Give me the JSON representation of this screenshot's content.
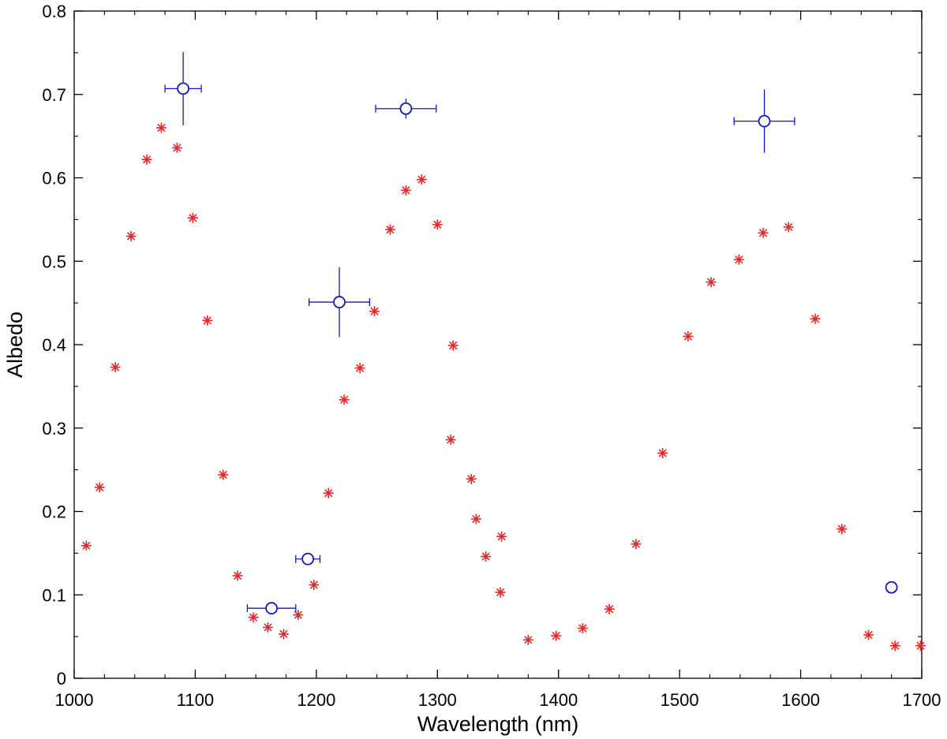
{
  "chart_data": {
    "type": "scatter",
    "title": "",
    "xlabel": "Wavelength (nm)",
    "ylabel": "Albedo",
    "xlim": [
      1000,
      1700
    ],
    "ylim": [
      0,
      0.8
    ],
    "xticks": [
      1000,
      1100,
      1200,
      1300,
      1400,
      1500,
      1600,
      1700
    ],
    "yticks": [
      0,
      0.1,
      0.2,
      0.3,
      0.4,
      0.5,
      0.6,
      0.7,
      0.8
    ],
    "grid": false,
    "legend": "none",
    "colors": {
      "model": "#e8262a",
      "observed": "#1414c8"
    },
    "series": [
      {
        "marker": "asterisk",
        "x": [
          1010,
          1021,
          1034,
          1047,
          1060,
          1072,
          1085,
          1098,
          1110,
          1123,
          1135,
          1148,
          1160,
          1173,
          1185,
          1198,
          1210,
          1223,
          1236,
          1248,
          1261,
          1274,
          1287,
          1300,
          1311,
          1313,
          1328,
          1332,
          1340,
          1352,
          1353,
          1375,
          1398,
          1420,
          1442,
          1464,
          1486,
          1507,
          1526,
          1549,
          1569,
          1590,
          1612,
          1634,
          1656,
          1678,
          1699
        ],
        "y": [
          0.159,
          0.229,
          0.373,
          0.53,
          0.622,
          0.66,
          0.636,
          0.552,
          0.429,
          0.244,
          0.123,
          0.073,
          0.061,
          0.053,
          0.076,
          0.112,
          0.222,
          0.334,
          0.372,
          0.44,
          0.538,
          0.585,
          0.598,
          0.544,
          0.286,
          0.399,
          0.239,
          0.191,
          0.146,
          0.103,
          0.17,
          0.046,
          0.051,
          0.06,
          0.083,
          0.161,
          0.27,
          0.41,
          0.475,
          0.502,
          0.534,
          0.541,
          0.431,
          0.179,
          0.052,
          0.039,
          0.039
        ]
      },
      {
        "marker": "circle-errorbar",
        "x": [
          1090,
          1163,
          1193,
          1219,
          1274,
          1570,
          1675
        ],
        "y": [
          0.707,
          0.084,
          0.143,
          0.451,
          0.683,
          0.668,
          0.109
        ],
        "xerr": [
          15,
          20,
          10,
          25,
          25,
          25,
          0
        ],
        "yerr": [
          0.044,
          0.005,
          0.006,
          0.042,
          0.012,
          0.038,
          0.004
        ]
      }
    ]
  }
}
